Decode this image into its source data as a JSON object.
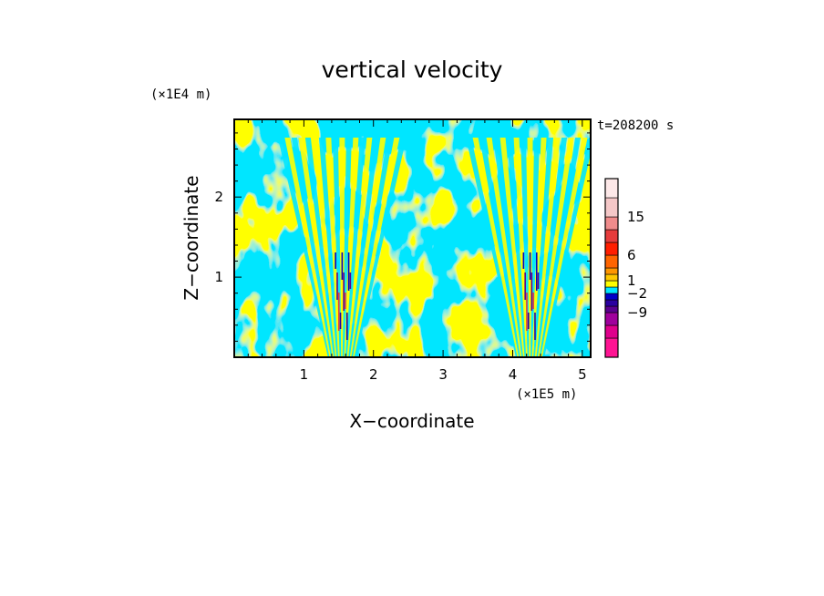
{
  "chart_data": {
    "type": "heatmap",
    "title": "vertical velocity",
    "xlabel": "X−coordinate",
    "ylabel": "Z−coordinate",
    "x_scale_note": "(×1E5 m)",
    "y_scale_note": "(×1E4 m)",
    "time_label": "t=208200 s",
    "xlim": [
      0,
      5.12
    ],
    "ylim": [
      0,
      2.97
    ],
    "x_ticks": [
      "1",
      "2",
      "3",
      "4",
      "5"
    ],
    "x_tick_values": [
      1,
      2,
      3,
      4,
      5
    ],
    "y_ticks": [
      "1",
      "2"
    ],
    "y_tick_values": [
      1,
      2
    ],
    "colorbar": {
      "levels": [
        {
          "color": "#ff1493"
        },
        {
          "color": "#e0008c"
        },
        {
          "color": "#a0009c"
        },
        {
          "color": "#5a0090"
        },
        {
          "color": "#2a00a0"
        },
        {
          "color": "#0000c8"
        },
        {
          "color": "#00e6ff"
        },
        {
          "color": "#ffff00"
        },
        {
          "color": "#ffc800"
        },
        {
          "color": "#ff9600"
        },
        {
          "color": "#ff6400"
        },
        {
          "color": "#ff1e00"
        },
        {
          "color": "#e63c3c"
        },
        {
          "color": "#f08c8c"
        },
        {
          "color": "#f5c8c8"
        },
        {
          "color": "#fde8e8"
        }
      ],
      "labels": [
        "15",
        "6",
        "1",
        "−2",
        "−9"
      ],
      "label_level_index": [
        13,
        10,
        7,
        5,
        2
      ]
    },
    "field": {
      "dominant_colors": [
        "#00e6ff",
        "#ffff00"
      ],
      "convective_columns_x": [
        1.55,
        4.25
      ]
    }
  }
}
